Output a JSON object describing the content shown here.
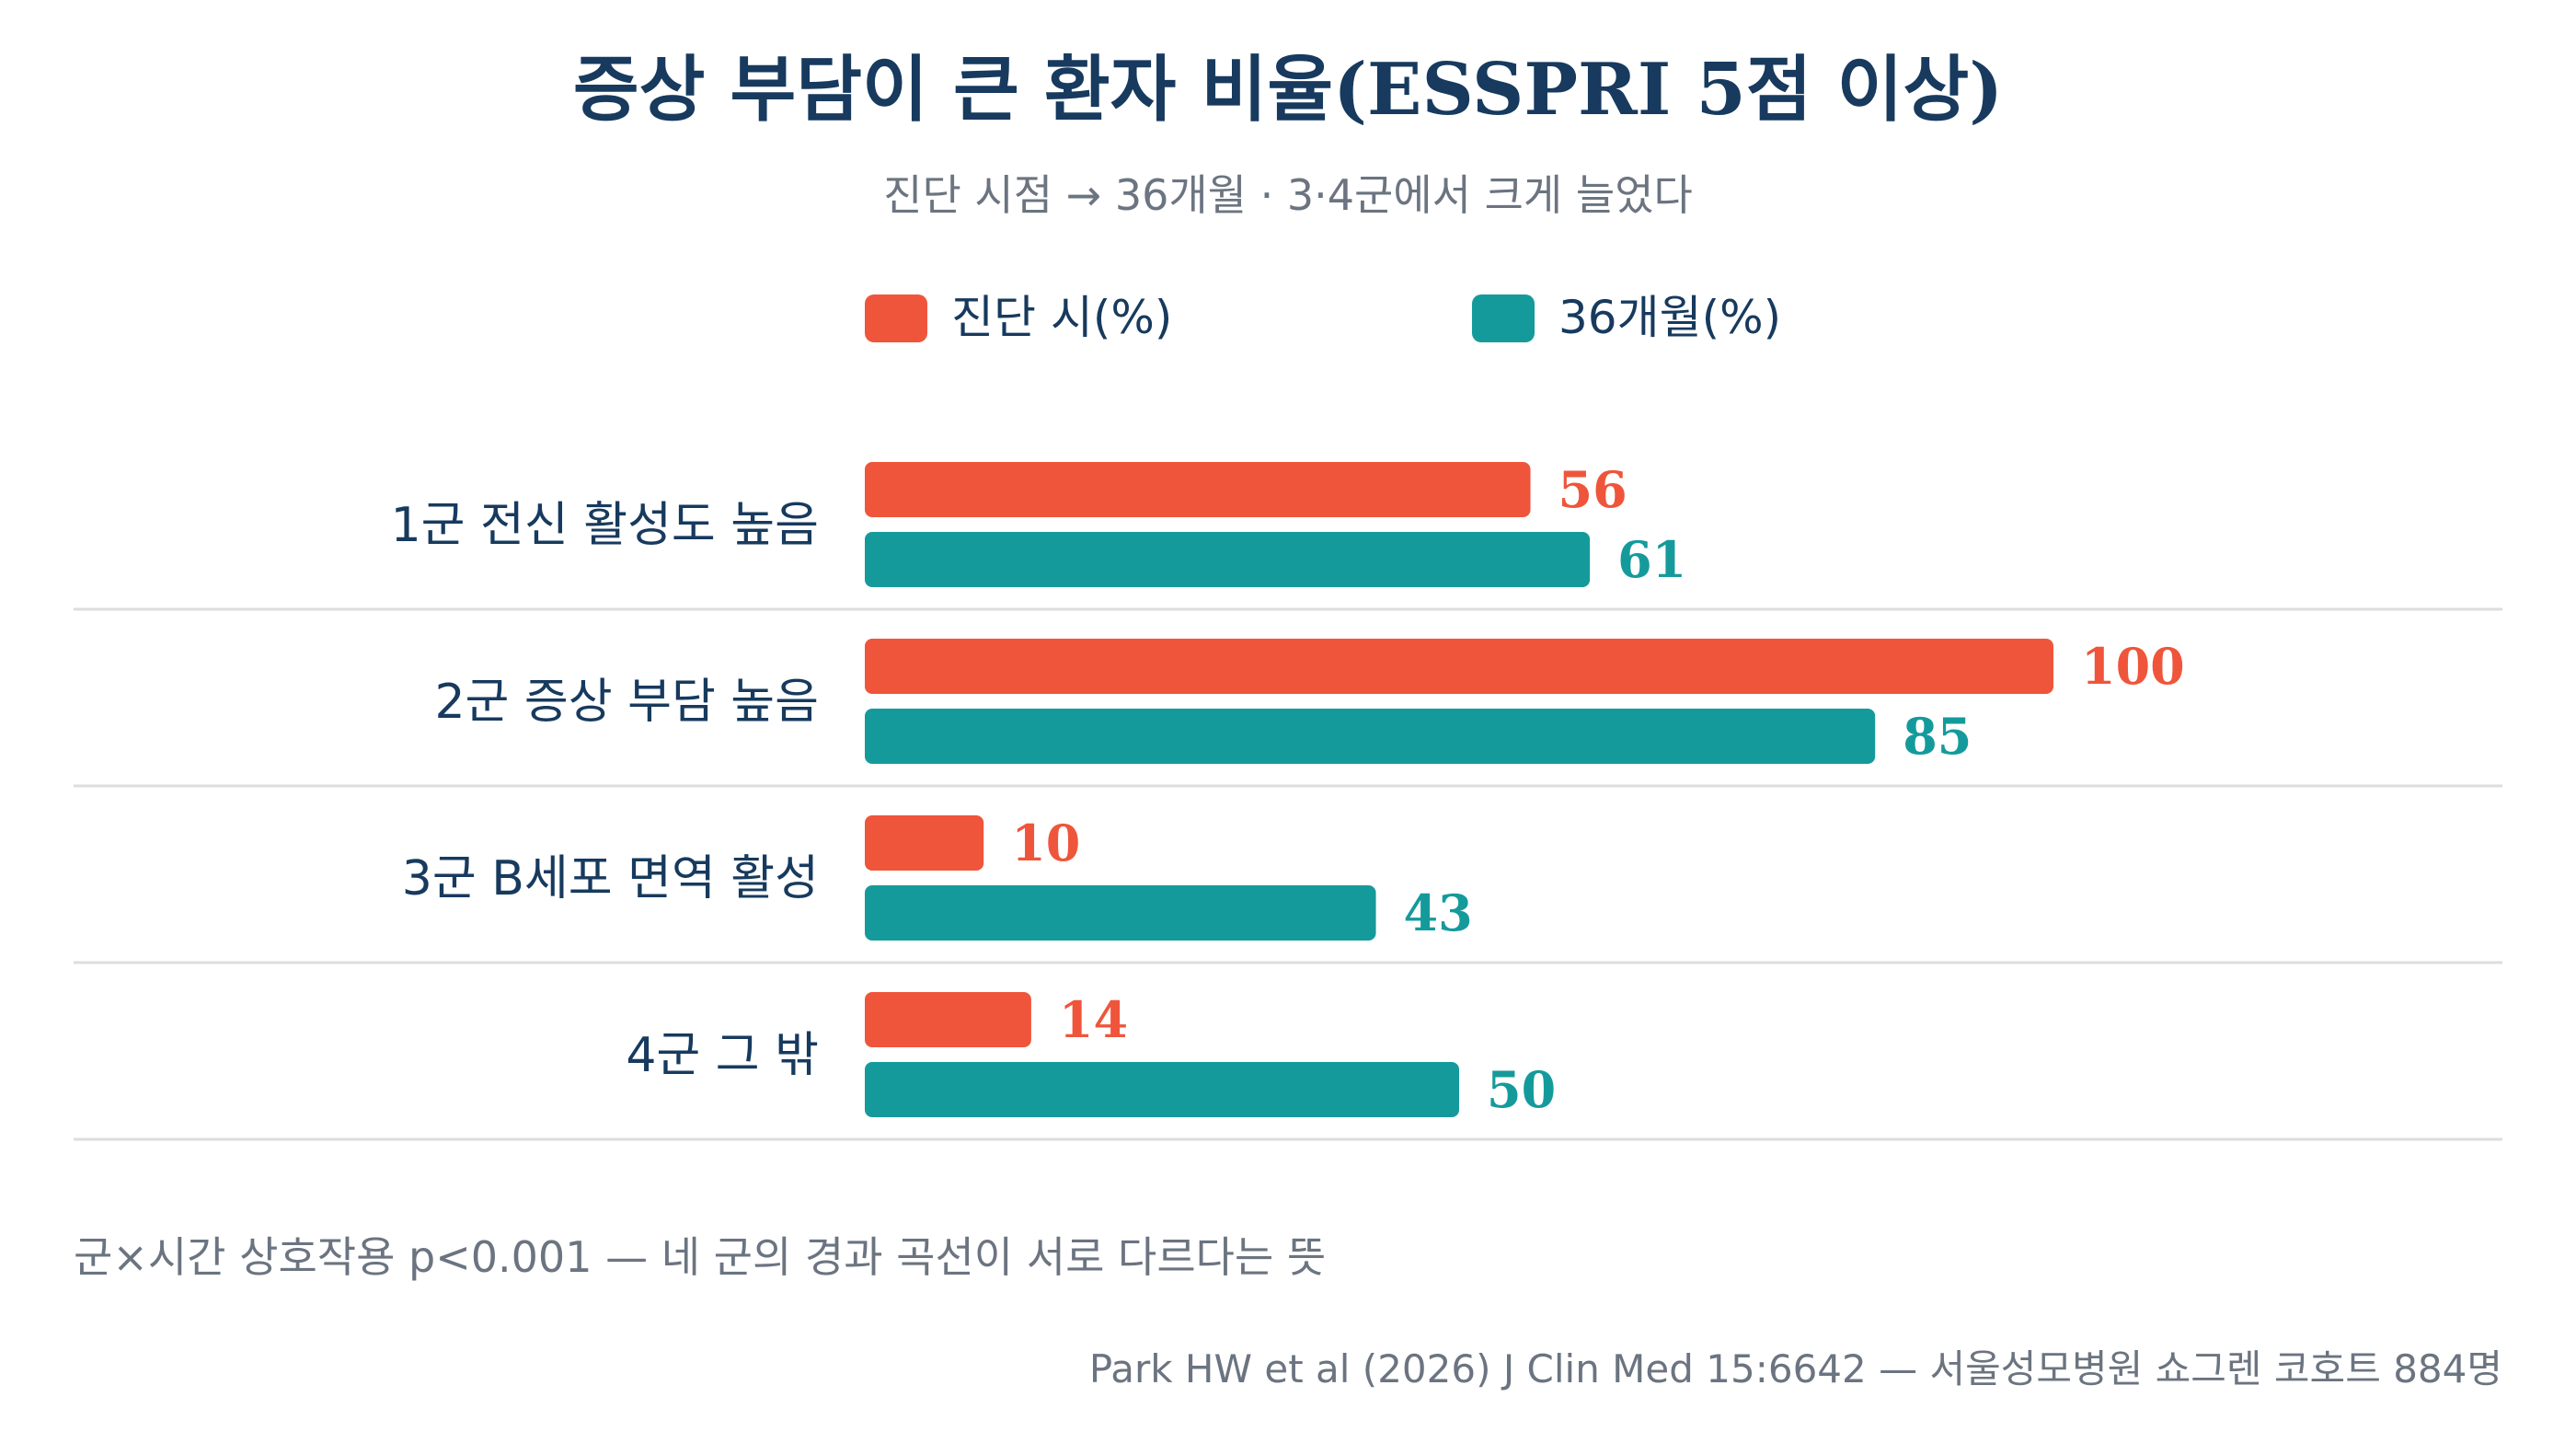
{
  "colors": {
    "title": "#173a5e",
    "subtitle": "#6b7480",
    "category": "#173a5e",
    "grid": "#dddddd",
    "note": "#6b7480",
    "source": "#6b7480"
  },
  "chart_data": {
    "type": "bar",
    "orientation": "horizontal",
    "title": "증상 부담이 큰 환자 비율(ESSPRI 5점 이상)",
    "subtitle": "진단 시점 → 36개월 · 3·4군에서 크게 늘었다",
    "legend_placement": "top-center",
    "grid": false,
    "xlim": [
      0,
      100
    ],
    "categories": [
      "1군 전신 활성도 높음",
      "2군 증상 부담 높음",
      "3군 B세포 면역 활성",
      "4군 그 밖"
    ],
    "series": [
      {
        "name": "진단 시(%)",
        "color": "#ef553b",
        "values": [
          56,
          100,
          10,
          14
        ]
      },
      {
        "name": "36개월(%)",
        "color": "#159a9c",
        "values": [
          61,
          85,
          43,
          50
        ]
      }
    ]
  },
  "footer": {
    "note": "군×시간 상호작용 p<0.001 — 네 군의 경과 곡선이 서로 다르다는 뜻",
    "source": "Park HW et al (2026) J Clin Med 15:6642 — 서울성모병원 쇼그렌 코호트 884명"
  }
}
